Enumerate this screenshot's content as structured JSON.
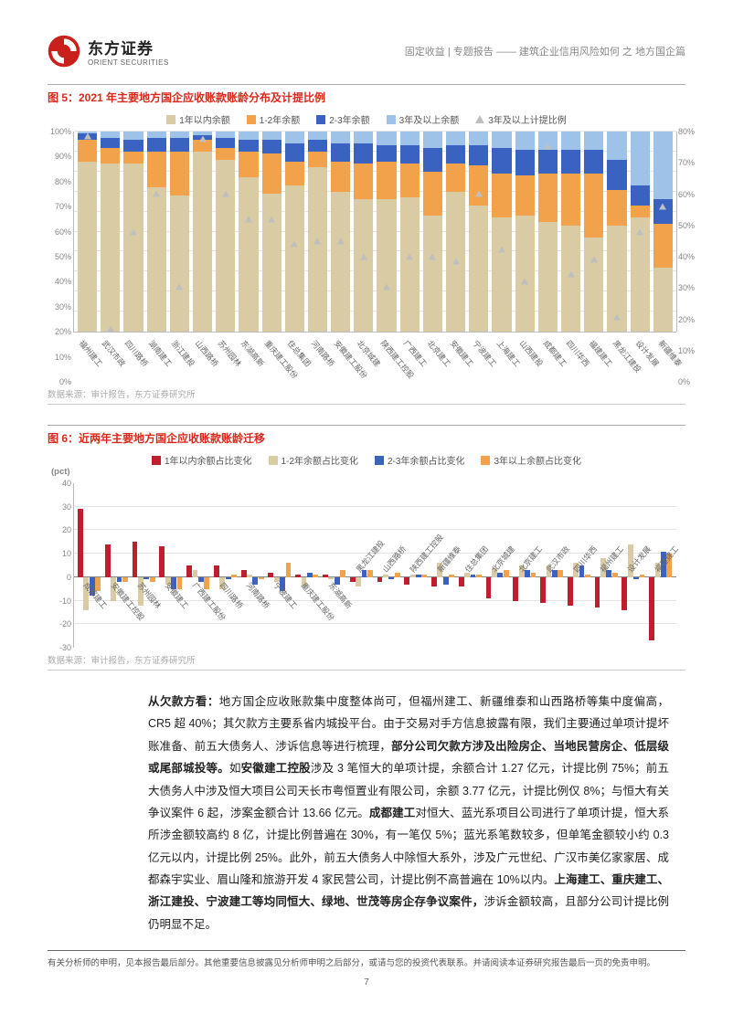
{
  "header": {
    "cn": "东方证券",
    "en": "ORIENT SECURITIES",
    "info": "固定收益 | 专题报告 —— 建筑企业信用风险如何 之 地方国企篇"
  },
  "colors": {
    "accent": "#d9291c",
    "bar1": "#d9cba3",
    "bar2": "#f2a24a",
    "bar3": "#3a62c0",
    "bar4": "#9fc2e8",
    "tri_border": "#bfbfbf",
    "tri_fill": "#ffffff",
    "c6_1": "#bf1e2e",
    "c6_2": "#d9cba3",
    "c6_3": "#3a62c0",
    "c6_4": "#f2a24a"
  },
  "chart5": {
    "title": "图 5：2021 年主要地方国企应收账款账龄分布及计提比例",
    "legend": [
      "1年以内余额",
      "1-2年余额",
      "2-3年余额",
      "3年及以上余额",
      "3年及以上计提比例"
    ],
    "source": "数据来源：审计报告，东方证券研究所",
    "left_ticks": [
      "100%",
      "90%",
      "80%",
      "70%",
      "60%",
      "50%",
      "40%",
      "30%",
      "20%",
      "10%",
      "0%"
    ],
    "right_ticks": [
      "80%",
      "70%",
      "60%",
      "50%",
      "40%",
      "30%",
      "20%",
      "10%",
      "0%"
    ],
    "items": [
      {
        "n": "福州建工",
        "s": [
          85,
          11,
          3,
          1
        ],
        "p": 78
      },
      {
        "n": "武汉市政",
        "s": [
          84,
          8,
          5,
          3
        ],
        "p": 1
      },
      {
        "n": "四川路桥",
        "s": [
          84,
          6,
          6,
          4
        ],
        "p": 40
      },
      {
        "n": "湖南建工",
        "s": [
          72,
          18,
          7,
          3
        ],
        "p": 55
      },
      {
        "n": "浙江建投",
        "s": [
          68,
          22,
          7,
          3
        ],
        "p": 18
      },
      {
        "n": "山西路桥",
        "s": [
          90,
          6,
          2,
          2
        ],
        "p": 77
      },
      {
        "n": "苏州园林",
        "s": [
          86,
          6,
          5,
          3
        ],
        "p": 55
      },
      {
        "n": "东湖高新",
        "s": [
          77,
          13,
          6,
          4
        ],
        "p": 45
      },
      {
        "n": "重庆建工股份",
        "s": [
          69,
          20,
          7,
          4
        ],
        "p": 45
      },
      {
        "n": "住总集团",
        "s": [
          73,
          12,
          9,
          6
        ],
        "p": 35
      },
      {
        "n": "河南路桥",
        "s": [
          82,
          8,
          6,
          4
        ],
        "p": 36
      },
      {
        "n": "安徽建工股份",
        "s": [
          70,
          15,
          9,
          6
        ],
        "p": 36
      },
      {
        "n": "北京城建",
        "s": [
          66,
          18,
          10,
          6
        ],
        "p": 30
      },
      {
        "n": "陕西建工控股",
        "s": [
          66,
          19,
          8,
          7
        ],
        "p": 18
      },
      {
        "n": "广西建工",
        "s": [
          67,
          17,
          9,
          7
        ],
        "p": 30
      },
      {
        "n": "北京建工",
        "s": [
          58,
          22,
          12,
          8
        ],
        "p": 30
      },
      {
        "n": "安徽建工",
        "s": [
          70,
          14,
          9,
          7
        ],
        "p": 28
      },
      {
        "n": "宁波建工",
        "s": [
          63,
          20,
          10,
          7
        ],
        "p": 55
      },
      {
        "n": "上海建工",
        "s": [
          57,
          22,
          13,
          8
        ],
        "p": 33
      },
      {
        "n": "山西建投",
        "s": [
          58,
          20,
          13,
          9
        ],
        "p": 20
      },
      {
        "n": "成都建工",
        "s": [
          55,
          24,
          12,
          9
        ],
        "p": 74
      },
      {
        "n": "四川华西",
        "s": [
          53,
          26,
          12,
          9
        ],
        "p": 23
      },
      {
        "n": "福建建工",
        "s": [
          47,
          32,
          12,
          9
        ],
        "p": 29
      },
      {
        "n": "黑龙江建投",
        "s": [
          53,
          18,
          15,
          14
        ],
        "p": 6
      },
      {
        "n": "设计发展",
        "s": [
          57,
          6,
          10,
          27
        ],
        "p": 40
      },
      {
        "n": "新疆维泰",
        "s": [
          32,
          22,
          12,
          34
        ],
        "p": 50
      }
    ]
  },
  "chart6": {
    "title": "图 6：近两年主要地方国企应收账款账龄迁移",
    "legend": [
      "1年以内余额占比变化",
      "1-2年余额占比变化",
      "2-3年余额占比变化",
      "3年以上余额占比变化"
    ],
    "source": "数据来源：审计报告，东方证券研究所",
    "unit": "(pct)",
    "ymin": -30,
    "ymax": 40,
    "ystep": 10,
    "items": [
      {
        "n": "成都建工",
        "v": [
          29,
          -14,
          -8,
          -6
        ],
        "pos": "below"
      },
      {
        "n": "安徽建工控股",
        "v": [
          14,
          -10,
          -2,
          -2
        ],
        "pos": "below"
      },
      {
        "n": "苏州园林",
        "v": [
          15,
          -12,
          -1,
          -2
        ],
        "pos": "below"
      },
      {
        "n": "安徽建工",
        "v": [
          13,
          -3,
          -5,
          -5
        ],
        "pos": "below"
      },
      {
        "n": "广西建工股份",
        "v": [
          5,
          3,
          -2,
          -5
        ],
        "pos": "below"
      },
      {
        "n": "四川路桥",
        "v": [
          5,
          -5,
          -1,
          1
        ],
        "pos": "below"
      },
      {
        "n": "河南路桥",
        "v": [
          3,
          1,
          -3,
          -1
        ],
        "pos": "below"
      },
      {
        "n": "宁波建工",
        "v": [
          2,
          -2,
          -6,
          6
        ],
        "pos": "below"
      },
      {
        "n": "重庆建工股份",
        "v": [
          1,
          -4,
          2,
          1
        ],
        "pos": "below"
      },
      {
        "n": "东湖高新",
        "v": [
          1,
          -1,
          -3,
          3
        ],
        "pos": "below"
      },
      {
        "n": "黑龙江建投",
        "v": [
          -2,
          -4,
          3,
          3
        ],
        "pos": "above"
      },
      {
        "n": "山西路桥",
        "v": [
          -2,
          1,
          -1,
          2
        ],
        "pos": "above"
      },
      {
        "n": "陕西建工控股",
        "v": [
          -3,
          1,
          1,
          1
        ],
        "pos": "above"
      },
      {
        "n": "新疆维泰",
        "v": [
          -4,
          6,
          -3,
          1
        ],
        "pos": "above"
      },
      {
        "n": "住总集团",
        "v": [
          -4,
          2,
          1,
          1
        ],
        "pos": "above"
      },
      {
        "n": "北京城建",
        "v": [
          -9,
          4,
          2,
          3
        ],
        "pos": "above"
      },
      {
        "n": "北京建工",
        "v": [
          -10,
          5,
          3,
          2
        ],
        "pos": "above"
      },
      {
        "n": "武汉市政",
        "v": [
          -11,
          5,
          3,
          3
        ],
        "pos": "above"
      },
      {
        "n": "四川华西",
        "v": [
          -12,
          6,
          5,
          1
        ],
        "pos": "above"
      },
      {
        "n": "福州建工",
        "v": [
          -13,
          8,
          3,
          2
        ],
        "pos": "above"
      },
      {
        "n": "设计发展",
        "v": [
          -14,
          14,
          -1,
          1
        ],
        "pos": "above"
      },
      {
        "n": "福建建工",
        "v": [
          -27,
          6,
          11,
          10
        ],
        "pos": "above"
      }
    ]
  },
  "body": "<b>从欠款方看：</b>地方国企应收账款集中度整体尚可，但福州建工、新疆维泰和山西路桥等集中度偏高，CR5 超 40%；其欠款方主要系省内城投平台。由于交易对手方信息披露有限，我们主要通过单项计提坏账准备、前五大债务人、涉诉信息等进行梳理，<b>部分公司欠款方涉及出险房企、当地民营房企、低层级或尾部城投等。</b>如<b>安徽建工控股</b>涉及 3 笔恒大的单项计提，余额合计 1.27 亿元，计提比例 75%；前五大债务人中涉及恒大项目公司天长市粤恒置业有限公司，余额 3.77 亿元，计提比例仅 8%；与恒大有关争议案件 6 起，涉案金额合计 13.66 亿元。<b>成都建工</b>对恒大、蓝光系项目公司进行了单项计提，恒大系所涉金额较高约 8 亿，计提比例普遍在 30%，有一笔仅 5%；蓝光系笔数较多，但单笔金额较小约 0.3 亿元以内，计提比例 25%。此外，前五大债务人中除恒大系外，涉及广元世纪、广汉市美亿家家居、成都森宇实业、眉山隆和旅游开发 4 家民营公司，计提比例不高普遍在 10%以内。<b>上海建工、重庆建工、浙江建投、宁波建工等均同恒大、绿地、世茂等房企存争议案件，</b>涉诉金额较高，且部分公司计提比例仍明显不足。",
  "footer": "有关分析师的申明，见本报告最后部分。其他重要信息披露见分析师申明之后部分，或请与您的投资代表联系。并请阅读本证券研究报告最后一页的免责申明。",
  "page": "7"
}
